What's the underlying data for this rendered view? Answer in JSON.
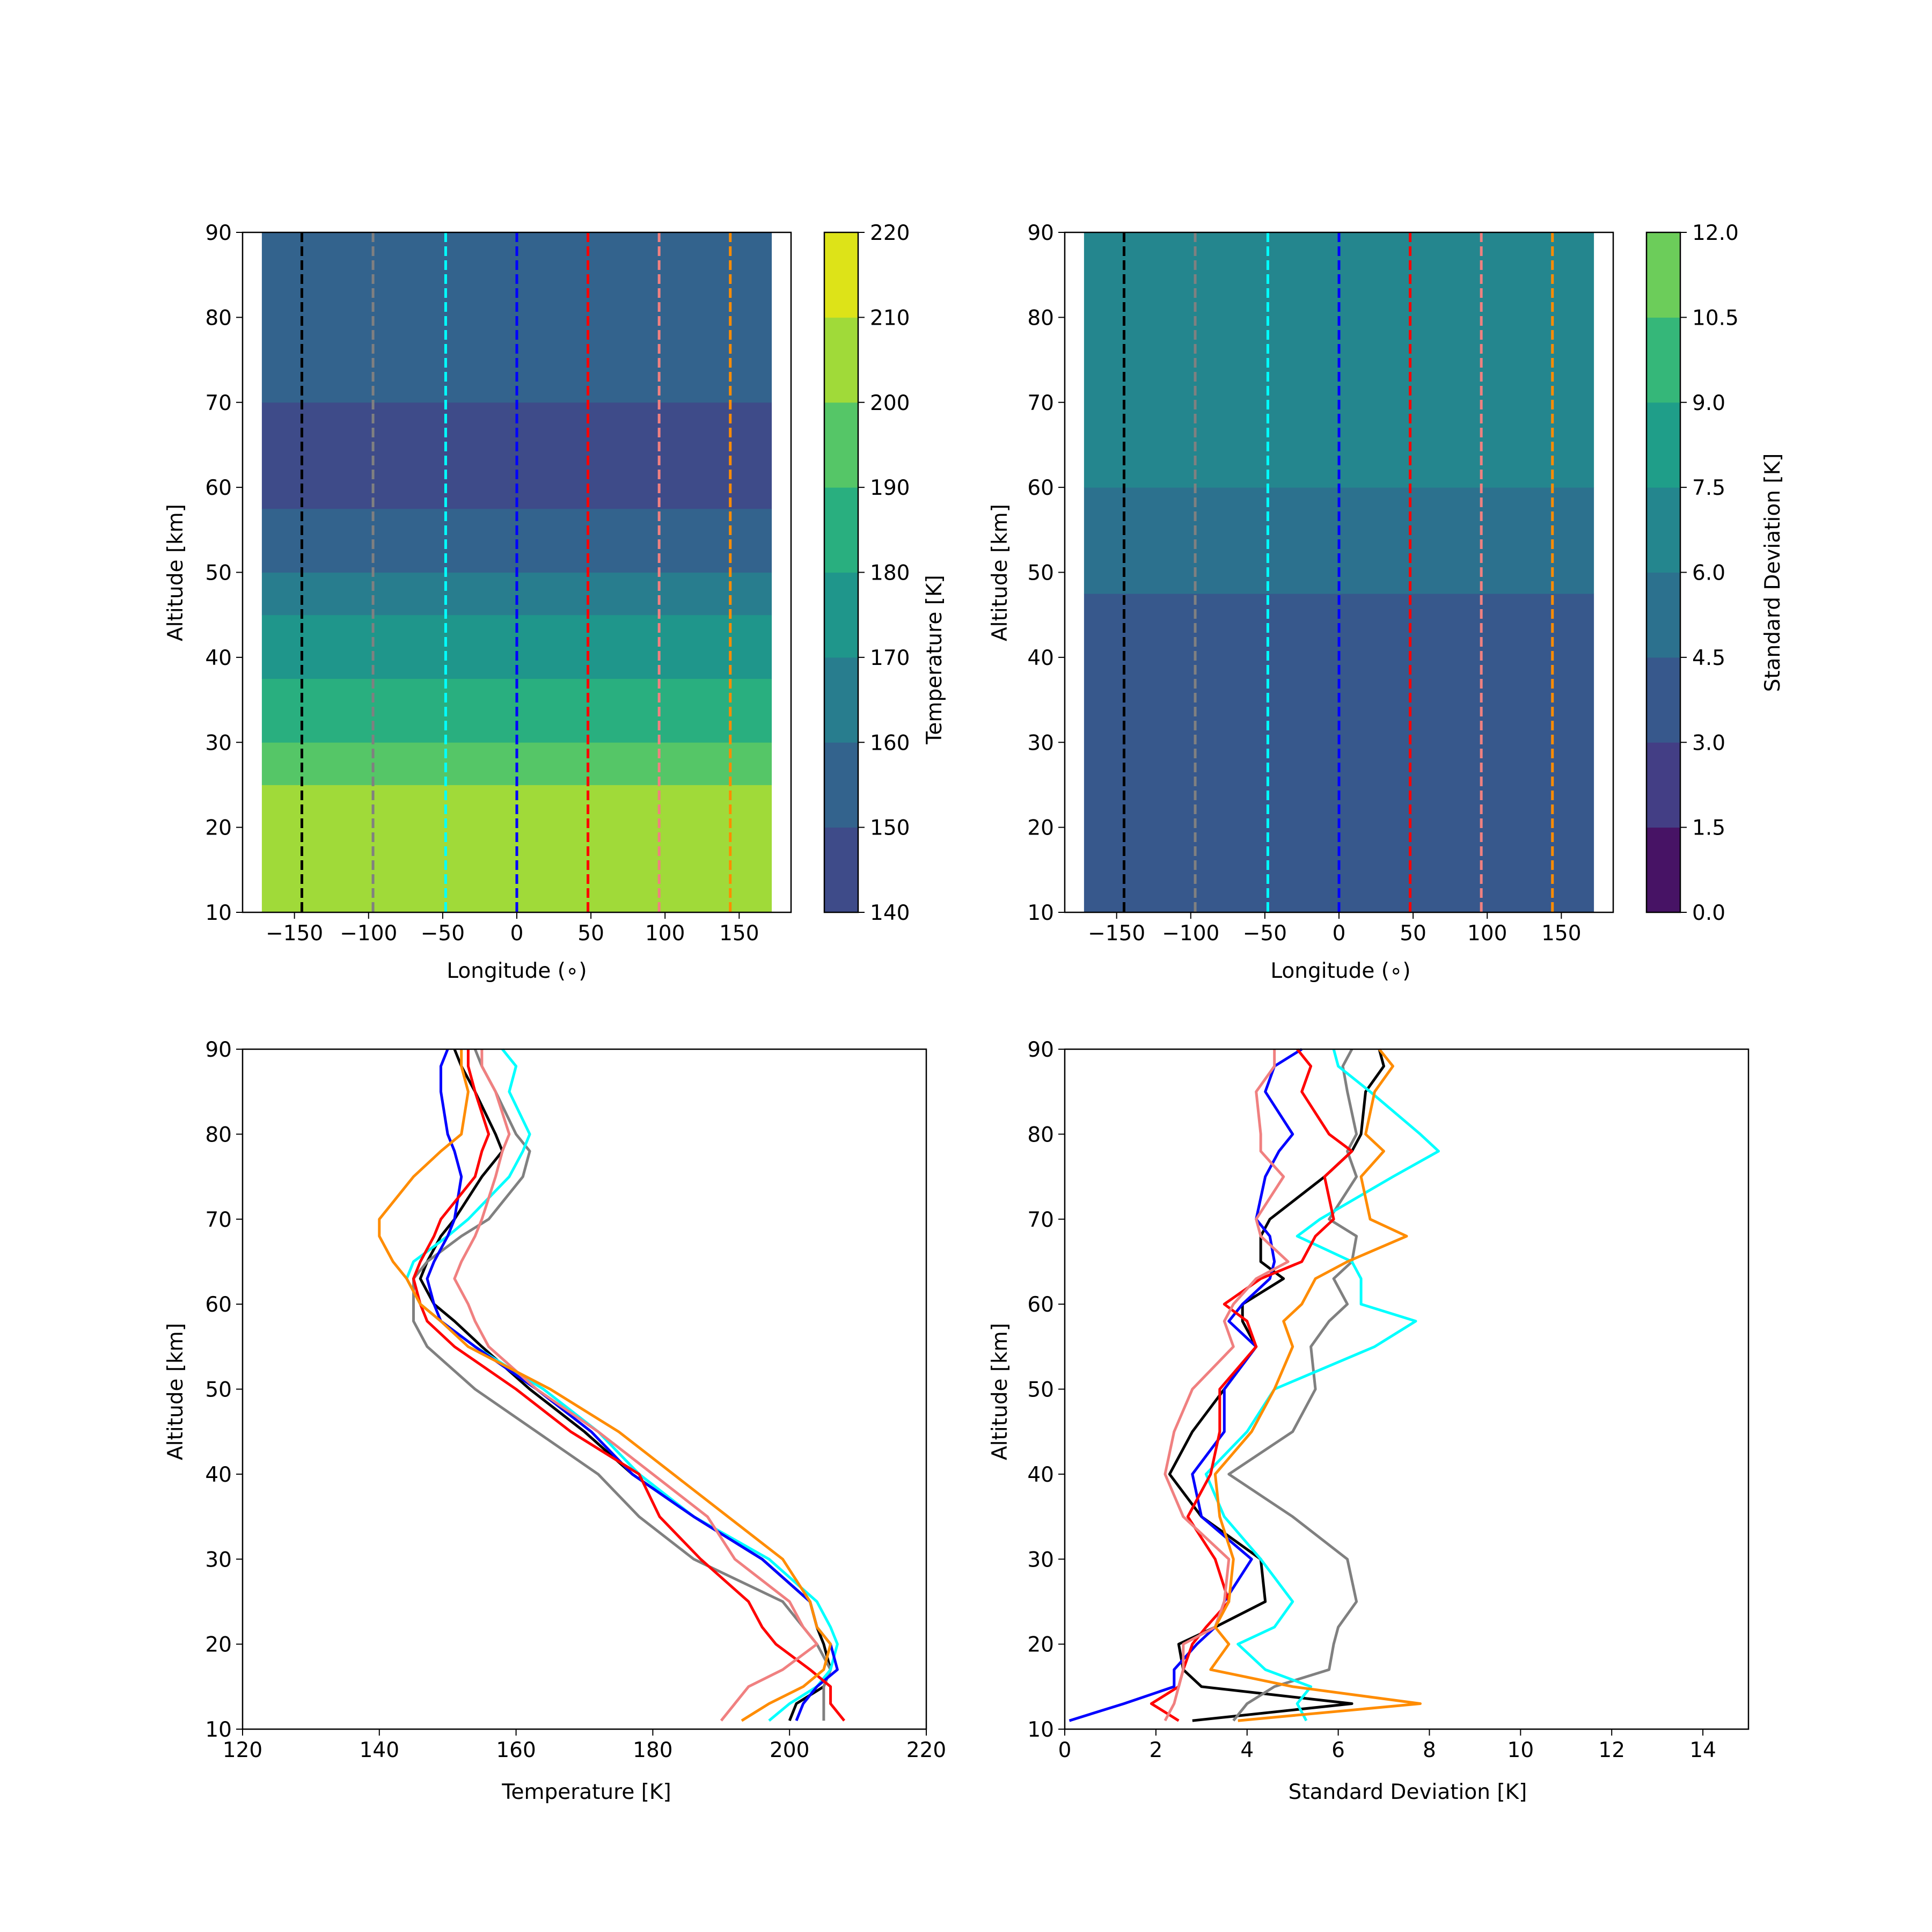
{
  "figure": {
    "background": "#ffffff"
  },
  "chart_data": [
    {
      "id": "temperature-map",
      "type": "heatmap",
      "title": "",
      "xlabel": "Longitude (∘)",
      "ylabel": "Altitude [km]",
      "xlim": [
        -185,
        185
      ],
      "ylim": [
        10,
        90
      ],
      "xticks": [
        -150,
        -100,
        -50,
        0,
        50,
        100,
        150
      ],
      "xtick_labels": [
        "−150",
        "−100",
        "−50",
        "0",
        "50",
        "100",
        "150"
      ],
      "yticks": [
        10,
        20,
        30,
        40,
        50,
        60,
        70,
        80,
        90
      ],
      "ytick_labels": [
        "10",
        "20",
        "30",
        "40",
        "50",
        "60",
        "70",
        "80",
        "90"
      ],
      "data_lon_range": [
        -172,
        172
      ],
      "colorbar": {
        "label": "Temperature [K]",
        "levels": [
          140,
          150,
          160,
          170,
          180,
          190,
          200,
          210,
          220
        ],
        "tick_labels": [
          "140",
          "150",
          "160",
          "170",
          "180",
          "190",
          "200",
          "210",
          "220"
        ],
        "colors": [
          "#3e4b89",
          "#33638d",
          "#287d8e",
          "#1f968b",
          "#29af7f",
          "#55c667",
          "#a0da39",
          "#dde318"
        ]
      },
      "temperature_profile_by_altitude": {
        "altitude": [
          10,
          15,
          20,
          25,
          30,
          35,
          40,
          45,
          50,
          55,
          60,
          65,
          70,
          75,
          80,
          85,
          90
        ],
        "temperature": [
          200,
          204,
          205,
          201,
          192,
          183,
          176,
          168,
          160,
          153,
          147,
          146,
          149,
          153,
          155,
          153,
          151
        ]
      },
      "vertical_lines": [
        {
          "longitude": -145,
          "color": "#000000"
        },
        {
          "longitude": -97,
          "color": "#808080"
        },
        {
          "longitude": -48,
          "color": "#00ffff"
        },
        {
          "longitude": 0,
          "color": "#0000ff"
        },
        {
          "longitude": 48,
          "color": "#ff0000"
        },
        {
          "longitude": 96,
          "color": "#f08080"
        },
        {
          "longitude": 144,
          "color": "#ff8c00"
        }
      ]
    },
    {
      "id": "stddev-map",
      "type": "heatmap",
      "title": "",
      "xlabel": "Longitude (∘)",
      "ylabel": "Altitude [km]",
      "xlim": [
        -185,
        185
      ],
      "ylim": [
        10,
        90
      ],
      "xticks": [
        -150,
        -100,
        -50,
        0,
        50,
        100,
        150
      ],
      "xtick_labels": [
        "−150",
        "−100",
        "−50",
        "0",
        "50",
        "100",
        "150"
      ],
      "yticks": [
        10,
        20,
        30,
        40,
        50,
        60,
        70,
        80,
        90
      ],
      "ytick_labels": [
        "10",
        "20",
        "30",
        "40",
        "50",
        "60",
        "70",
        "80",
        "90"
      ],
      "data_lon_range": [
        -172,
        172
      ],
      "colorbar": {
        "label": "Standard Deviation [K]",
        "levels": [
          0.0,
          1.5,
          3.0,
          4.5,
          6.0,
          7.5,
          9.0,
          10.5,
          12.0
        ],
        "tick_labels": [
          "0.0",
          "1.5",
          "3.0",
          "4.5",
          "6.0",
          "7.5",
          "9.0",
          "10.5",
          "12.0"
        ],
        "colors": [
          "#471365",
          "#433e85",
          "#37588c",
          "#2c718e",
          "#24868e",
          "#1f9e89",
          "#35b779",
          "#6ccd5a"
        ]
      },
      "stddev_profile_by_altitude": {
        "altitude": [
          10,
          15,
          20,
          25,
          30,
          35,
          40,
          45,
          50,
          55,
          60,
          65,
          70,
          75,
          80,
          85,
          90
        ],
        "stddev": [
          3.6,
          3.3,
          3.2,
          3.3,
          3.4,
          3.5,
          3.9,
          4.3,
          4.6,
          5.1,
          5.9,
          6.4,
          6.9,
          7.4,
          7.0,
          6.3,
          6.6
        ]
      },
      "vertical_lines": [
        {
          "longitude": -145,
          "color": "#000000"
        },
        {
          "longitude": -97,
          "color": "#808080"
        },
        {
          "longitude": -48,
          "color": "#00ffff"
        },
        {
          "longitude": 0,
          "color": "#0000ff"
        },
        {
          "longitude": 48,
          "color": "#ff0000"
        },
        {
          "longitude": 96,
          "color": "#f08080"
        },
        {
          "longitude": 144,
          "color": "#ff8c00"
        }
      ]
    },
    {
      "id": "temperature-profiles",
      "type": "line",
      "title": "",
      "xlabel": "Temperature [K]",
      "ylabel": "Altitude [km]",
      "xlim": [
        120,
        220
      ],
      "ylim": [
        10,
        90
      ],
      "xticks": [
        120,
        140,
        160,
        180,
        200,
        220
      ],
      "xtick_labels": [
        "120",
        "140",
        "160",
        "180",
        "200",
        "220"
      ],
      "yticks": [
        10,
        20,
        30,
        40,
        50,
        60,
        70,
        80,
        90
      ],
      "ytick_labels": [
        "10",
        "20",
        "30",
        "40",
        "50",
        "60",
        "70",
        "80",
        "90"
      ],
      "altitude": [
        11,
        13,
        15,
        17,
        20,
        22,
        25,
        30,
        35,
        40,
        45,
        50,
        55,
        58,
        60,
        63,
        65,
        68,
        70,
        75,
        78,
        80,
        85,
        88,
        90
      ],
      "series": [
        {
          "color": "#000000",
          "x": [
            200,
            201,
            205,
            206,
            205,
            204,
            203,
            196,
            186,
            177,
            170,
            162,
            155,
            151,
            148,
            146,
            147,
            149,
            151,
            155,
            158,
            157,
            154,
            152,
            151
          ]
        },
        {
          "color": "#808080",
          "x": [
            205,
            205,
            205,
            206,
            204,
            202,
            199,
            186,
            178,
            172,
            163,
            154,
            147,
            145,
            145,
            145,
            147,
            152,
            156,
            161,
            162,
            160,
            157,
            155,
            154
          ]
        },
        {
          "color": "#00ffff",
          "x": [
            197,
            200,
            204,
            206,
            207,
            206,
            204,
            197,
            186,
            178,
            172,
            164,
            154,
            149,
            146,
            144,
            145,
            150,
            153,
            159,
            161,
            162,
            159,
            160,
            158
          ]
        },
        {
          "color": "#0000ff",
          "x": [
            201,
            202,
            204,
            207,
            206,
            204,
            203,
            196,
            186,
            177,
            171,
            163,
            154,
            149,
            148,
            147,
            148,
            150,
            151,
            152,
            151,
            150,
            149,
            149,
            150
          ]
        },
        {
          "color": "#ff0000",
          "x": [
            208,
            206,
            206,
            203,
            198,
            196,
            194,
            187,
            181,
            178,
            168,
            160,
            151,
            147,
            146,
            145,
            146,
            148,
            149,
            154,
            155,
            156,
            154,
            153,
            153
          ]
        },
        {
          "color": "#f08080",
          "x": [
            190,
            192,
            194,
            199,
            204,
            202,
            200,
            192,
            188,
            180,
            172,
            163,
            156,
            154,
            153,
            151,
            152,
            154,
            155,
            157,
            158,
            159,
            157,
            155,
            155
          ]
        },
        {
          "color": "#ff8c00",
          "x": [
            193,
            197,
            202,
            205,
            206,
            204,
            203,
            199,
            191,
            183,
            175,
            165,
            153,
            149,
            146,
            144,
            142,
            140,
            140,
            145,
            149,
            152,
            153,
            152,
            152
          ]
        }
      ]
    },
    {
      "id": "stddev-profiles",
      "type": "line",
      "title": "",
      "xlabel": "Standard Deviation [K]",
      "ylabel": "Altitude [km]",
      "xlim": [
        0,
        15
      ],
      "ylim": [
        10,
        90
      ],
      "xticks": [
        0,
        2,
        4,
        6,
        8,
        10,
        12,
        14
      ],
      "xtick_labels": [
        "0",
        "2",
        "4",
        "6",
        "8",
        "10",
        "12",
        "14"
      ],
      "yticks": [
        10,
        20,
        30,
        40,
        50,
        60,
        70,
        80,
        90
      ],
      "ytick_labels": [
        "10",
        "20",
        "30",
        "40",
        "50",
        "60",
        "70",
        "80",
        "90"
      ],
      "altitude": [
        11,
        13,
        15,
        17,
        20,
        22,
        25,
        30,
        35,
        40,
        45,
        50,
        55,
        58,
        60,
        63,
        65,
        68,
        70,
        75,
        78,
        80,
        85,
        88,
        90
      ],
      "series": [
        {
          "color": "#000000",
          "x": [
            2.8,
            6.3,
            3.0,
            2.6,
            2.5,
            3.3,
            4.4,
            4.3,
            3.0,
            2.3,
            2.8,
            3.5,
            4.2,
            3.9,
            3.9,
            4.8,
            4.3,
            4.3,
            4.5,
            5.7,
            6.3,
            6.5,
            6.6,
            7.0,
            6.9
          ]
        },
        {
          "color": "#808080",
          "x": [
            3.7,
            4.0,
            4.6,
            5.8,
            5.9,
            6.0,
            6.4,
            6.2,
            5.0,
            3.6,
            5.0,
            5.5,
            5.4,
            5.8,
            6.2,
            5.9,
            6.3,
            6.4,
            5.8,
            6.4,
            6.2,
            6.4,
            6.2,
            6.1,
            6.3
          ]
        },
        {
          "color": "#00ffff",
          "x": [
            5.3,
            5.1,
            5.4,
            4.4,
            3.8,
            4.6,
            5.0,
            4.3,
            3.5,
            3.1,
            4.0,
            4.6,
            6.8,
            7.7,
            6.5,
            6.5,
            6.3,
            5.1,
            5.6,
            7.2,
            8.2,
            7.8,
            6.7,
            6.0,
            5.9
          ]
        },
        {
          "color": "#0000ff",
          "x": [
            0.1,
            1.3,
            2.4,
            2.4,
            2.9,
            3.3,
            3.5,
            4.1,
            3.0,
            2.8,
            3.5,
            3.5,
            4.2,
            3.6,
            3.9,
            4.5,
            4.6,
            4.5,
            4.2,
            4.4,
            4.7,
            5.0,
            4.4,
            4.6,
            5.2
          ]
        },
        {
          "color": "#ff0000",
          "x": [
            2.5,
            1.9,
            2.5,
            2.6,
            2.8,
            3.1,
            3.6,
            3.3,
            2.7,
            3.2,
            3.4,
            3.4,
            4.2,
            4.0,
            3.5,
            4.3,
            5.2,
            5.5,
            5.9,
            5.7,
            6.3,
            5.8,
            5.2,
            5.4,
            5.1
          ]
        },
        {
          "color": "#f08080",
          "x": [
            2.2,
            2.4,
            2.5,
            2.6,
            2.6,
            3.3,
            3.5,
            3.6,
            2.6,
            2.2,
            2.4,
            2.8,
            3.7,
            3.5,
            3.7,
            4.2,
            4.9,
            4.3,
            4.2,
            4.8,
            4.3,
            4.3,
            4.2,
            4.6,
            4.6
          ]
        },
        {
          "color": "#ff8c00",
          "x": [
            3.8,
            7.8,
            5.0,
            3.2,
            3.6,
            3.3,
            3.6,
            3.7,
            3.4,
            3.3,
            4.1,
            4.6,
            5.0,
            4.8,
            5.2,
            5.5,
            6.2,
            7.5,
            6.7,
            6.5,
            7.0,
            6.6,
            6.8,
            7.2,
            6.9
          ]
        }
      ]
    }
  ]
}
